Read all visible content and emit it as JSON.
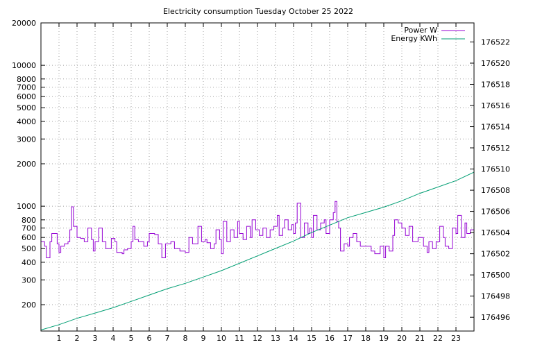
{
  "chart_data": {
    "type": "line",
    "title": "Electricity consumption Tuesday October 25 2022",
    "x": {
      "range": [
        0,
        24
      ],
      "ticks": [
        1,
        2,
        3,
        4,
        5,
        6,
        7,
        8,
        9,
        10,
        11,
        12,
        13,
        14,
        15,
        16,
        17,
        18,
        19,
        20,
        21,
        22,
        23
      ],
      "tick_labels": [
        "1",
        "2",
        "3",
        "4",
        "5",
        "6",
        "7",
        "8",
        "9",
        "10",
        "11",
        "12",
        "13",
        "14",
        "15",
        "16",
        "17",
        "18",
        "19",
        "20",
        "21",
        "22",
        "23"
      ]
    },
    "y_left": {
      "scale": "log",
      "range": [
        130,
        20000
      ],
      "ticks": [
        200,
        300,
        400,
        500,
        600,
        700,
        800,
        1000,
        2000,
        3000,
        4000,
        5000,
        6000,
        7000,
        8000,
        10000,
        20000
      ],
      "tick_labels": [
        "200",
        "300",
        "400",
        "500",
        "600",
        "700",
        "800",
        "1000",
        "2000",
        "3000",
        "4000",
        "5000",
        "6000",
        "7000",
        "8000",
        "10000",
        "20000"
      ],
      "grid_ticks": [
        200,
        300,
        400,
        500,
        600,
        700,
        800,
        1000,
        2000,
        3000,
        4000,
        5000,
        6000,
        7000,
        8000,
        10000
      ]
    },
    "y_right": {
      "scale": "linear",
      "range": [
        176494.7,
        176523.8
      ],
      "ticks": [
        176496,
        176498,
        176500,
        176502,
        176504,
        176506,
        176508,
        176510,
        176512,
        176514,
        176516,
        176518,
        176520,
        176522
      ],
      "tick_labels": [
        "176496",
        "176498",
        "176500",
        "176502",
        "176504",
        "176506",
        "176508",
        "176510",
        "176512",
        "176514",
        "176516",
        "176518",
        "176520",
        "176522"
      ]
    },
    "grid": true,
    "legend_position": "top-right",
    "series": [
      {
        "name": "Power W",
        "axis": "y_left",
        "color": "#9400d3",
        "points": [
          [
            0.0,
            560
          ],
          [
            0.2,
            520
          ],
          [
            0.3,
            430
          ],
          [
            0.5,
            560
          ],
          [
            0.6,
            640
          ],
          [
            0.9,
            540
          ],
          [
            1.0,
            470
          ],
          [
            1.1,
            520
          ],
          [
            1.3,
            540
          ],
          [
            1.5,
            560
          ],
          [
            1.6,
            680
          ],
          [
            1.7,
            990
          ],
          [
            1.8,
            720
          ],
          [
            2.0,
            600
          ],
          [
            2.2,
            590
          ],
          [
            2.4,
            560
          ],
          [
            2.6,
            700
          ],
          [
            2.8,
            580
          ],
          [
            2.9,
            480
          ],
          [
            3.0,
            560
          ],
          [
            3.2,
            700
          ],
          [
            3.4,
            560
          ],
          [
            3.6,
            500
          ],
          [
            3.9,
            590
          ],
          [
            4.1,
            560
          ],
          [
            4.2,
            470
          ],
          [
            4.5,
            460
          ],
          [
            4.6,
            490
          ],
          [
            4.8,
            500
          ],
          [
            5.0,
            560
          ],
          [
            5.1,
            720
          ],
          [
            5.2,
            580
          ],
          [
            5.4,
            560
          ],
          [
            5.7,
            520
          ],
          [
            5.9,
            560
          ],
          [
            6.0,
            640
          ],
          [
            6.3,
            630
          ],
          [
            6.5,
            540
          ],
          [
            6.7,
            430
          ],
          [
            6.9,
            540
          ],
          [
            7.2,
            560
          ],
          [
            7.4,
            500
          ],
          [
            7.7,
            480
          ],
          [
            8.0,
            470
          ],
          [
            8.2,
            600
          ],
          [
            8.4,
            540
          ],
          [
            8.7,
            720
          ],
          [
            8.9,
            560
          ],
          [
            9.1,
            580
          ],
          [
            9.2,
            550
          ],
          [
            9.4,
            500
          ],
          [
            9.6,
            540
          ],
          [
            9.7,
            680
          ],
          [
            9.9,
            580
          ],
          [
            10.0,
            460
          ],
          [
            10.1,
            780
          ],
          [
            10.3,
            560
          ],
          [
            10.5,
            680
          ],
          [
            10.7,
            600
          ],
          [
            10.9,
            780
          ],
          [
            11.0,
            640
          ],
          [
            11.2,
            580
          ],
          [
            11.4,
            720
          ],
          [
            11.6,
            600
          ],
          [
            11.7,
            800
          ],
          [
            11.9,
            680
          ],
          [
            12.1,
            620
          ],
          [
            12.3,
            700
          ],
          [
            12.5,
            600
          ],
          [
            12.7,
            680
          ],
          [
            12.9,
            720
          ],
          [
            13.1,
            860
          ],
          [
            13.2,
            620
          ],
          [
            13.4,
            700
          ],
          [
            13.5,
            800
          ],
          [
            13.7,
            680
          ],
          [
            13.9,
            740
          ],
          [
            14.0,
            640
          ],
          [
            14.1,
            760
          ],
          [
            14.2,
            1050
          ],
          [
            14.4,
            600
          ],
          [
            14.6,
            760
          ],
          [
            14.8,
            640
          ],
          [
            14.9,
            700
          ],
          [
            15.0,
            600
          ],
          [
            15.1,
            860
          ],
          [
            15.3,
            680
          ],
          [
            15.5,
            760
          ],
          [
            15.7,
            800
          ],
          [
            15.8,
            640
          ],
          [
            16.0,
            800
          ],
          [
            16.2,
            900
          ],
          [
            16.3,
            1080
          ],
          [
            16.4,
            780
          ],
          [
            16.5,
            700
          ],
          [
            16.6,
            480
          ],
          [
            16.8,
            540
          ],
          [
            17.0,
            520
          ],
          [
            17.1,
            600
          ],
          [
            17.3,
            640
          ],
          [
            17.5,
            560
          ],
          [
            17.7,
            520
          ],
          [
            18.0,
            520
          ],
          [
            18.3,
            480
          ],
          [
            18.5,
            460
          ],
          [
            18.8,
            520
          ],
          [
            19.0,
            430
          ],
          [
            19.1,
            520
          ],
          [
            19.3,
            480
          ],
          [
            19.5,
            620
          ],
          [
            19.6,
            800
          ],
          [
            19.8,
            760
          ],
          [
            20.0,
            700
          ],
          [
            20.2,
            620
          ],
          [
            20.4,
            720
          ],
          [
            20.6,
            560
          ],
          [
            20.9,
            600
          ],
          [
            21.2,
            520
          ],
          [
            21.4,
            470
          ],
          [
            21.5,
            560
          ],
          [
            21.7,
            500
          ],
          [
            21.9,
            560
          ],
          [
            22.1,
            720
          ],
          [
            22.3,
            600
          ],
          [
            22.4,
            520
          ],
          [
            22.6,
            500
          ],
          [
            22.8,
            700
          ],
          [
            23.0,
            640
          ],
          [
            23.1,
            860
          ],
          [
            23.3,
            600
          ],
          [
            23.5,
            760
          ],
          [
            23.6,
            640
          ],
          [
            23.8,
            680
          ],
          [
            24.0,
            580
          ]
        ]
      },
      {
        "name": "Energy KWh",
        "axis": "y_right",
        "color": "#009e73",
        "points": [
          [
            0,
            176494.8
          ],
          [
            1,
            176495.3
          ],
          [
            2,
            176495.9
          ],
          [
            3,
            176496.4
          ],
          [
            4,
            176496.9
          ],
          [
            5,
            176497.5
          ],
          [
            6,
            176498.1
          ],
          [
            7,
            176498.7
          ],
          [
            8,
            176499.2
          ],
          [
            9,
            176499.8
          ],
          [
            10,
            176500.4
          ],
          [
            11,
            176501.1
          ],
          [
            12,
            176501.8
          ],
          [
            13,
            176502.5
          ],
          [
            14,
            176503.2
          ],
          [
            15,
            176504.0
          ],
          [
            16,
            176504.7
          ],
          [
            17,
            176505.4
          ],
          [
            18,
            176505.9
          ],
          [
            19,
            176506.4
          ],
          [
            20,
            176507.0
          ],
          [
            21,
            176507.7
          ],
          [
            22,
            176508.3
          ],
          [
            23,
            176508.9
          ],
          [
            24,
            176509.7
          ]
        ]
      }
    ]
  }
}
